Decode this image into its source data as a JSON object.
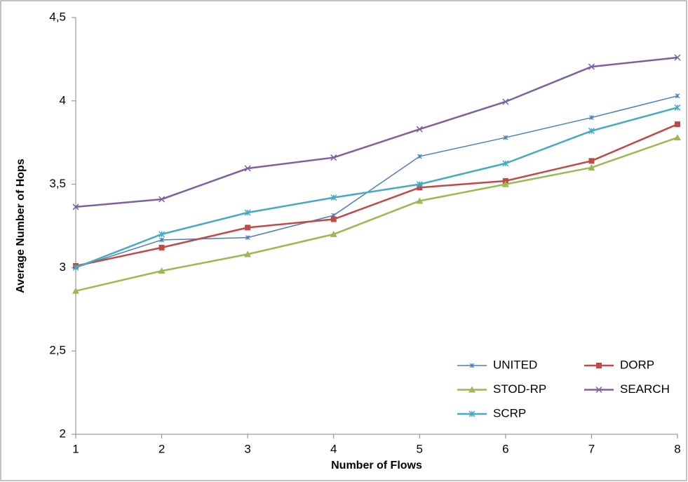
{
  "chart_data": {
    "type": "line",
    "xlabel": "Number of Flows",
    "ylabel": "Average Number of Hops",
    "x": [
      1,
      2,
      3,
      4,
      5,
      6,
      7,
      8
    ],
    "xlim": [
      1,
      8
    ],
    "xticks": [
      1,
      2,
      3,
      4,
      5,
      6,
      7,
      8
    ],
    "ylim": [
      2,
      4.5
    ],
    "yticks": [
      2,
      {
        "value": 2.5,
        "label": "2,5"
      },
      3,
      {
        "value": 3.5,
        "label": "3,5"
      },
      4,
      {
        "value": 4.5,
        "label": "4,5"
      }
    ],
    "grid": false,
    "legend": "lower right",
    "series": [
      {
        "name": "UNITED",
        "color": "#4a7ebb",
        "marker": "star",
        "values": [
          3.0,
          3.166,
          3.18,
          3.313,
          3.667,
          3.78,
          3.9,
          4.03
        ]
      },
      {
        "name": "DORP",
        "color": "#be4b48",
        "marker": "square",
        "values": [
          3.01,
          3.12,
          3.24,
          3.29,
          3.48,
          3.52,
          3.64,
          3.86
        ]
      },
      {
        "name": "STOD-RP",
        "color": "#98b954",
        "marker": "triangle",
        "values": [
          2.86,
          2.98,
          3.08,
          3.2,
          3.4,
          3.5,
          3.6,
          3.78
        ]
      },
      {
        "name": "SEARCH",
        "color": "#7d60a0",
        "marker": "x",
        "values": [
          3.364,
          3.41,
          3.595,
          3.66,
          3.83,
          3.995,
          4.205,
          4.26
        ]
      },
      {
        "name": "SCRP",
        "color": "#46aac5",
        "marker": "asterisk",
        "values": [
          3.0,
          3.2,
          3.33,
          3.42,
          3.5,
          3.625,
          3.82,
          3.96
        ]
      }
    ]
  }
}
